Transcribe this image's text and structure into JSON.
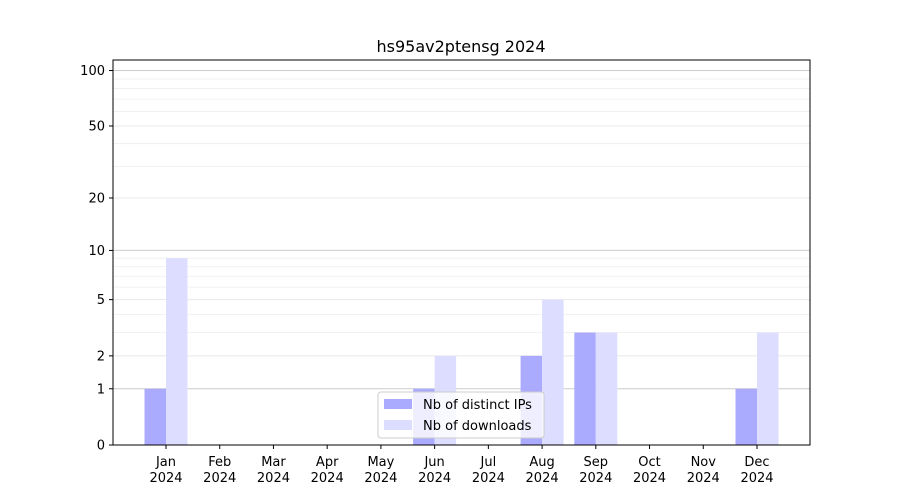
{
  "chart_data": {
    "type": "bar",
    "title": "hs95av2ptensg 2024",
    "xlabel": "",
    "ylabel": "",
    "yscale": "log(1+y)",
    "ylim": [
      0,
      114
    ],
    "yticks": [
      0,
      1,
      2,
      5,
      10,
      20,
      50,
      100
    ],
    "grid": true,
    "legend_position": "lower-center",
    "categories": [
      "Jan\n2024",
      "Feb\n2024",
      "Mar\n2024",
      "Apr\n2024",
      "May\n2024",
      "Jun\n2024",
      "Jul\n2024",
      "Aug\n2024",
      "Sep\n2024",
      "Oct\n2024",
      "Nov\n2024",
      "Dec\n2024"
    ],
    "series": [
      {
        "name": "Nb of distinct IPs",
        "color": "#aaaaff",
        "values": [
          1,
          0,
          0,
          0,
          0,
          1,
          0,
          2,
          3,
          0,
          0,
          1
        ]
      },
      {
        "name": "Nb of downloads",
        "color": "#ddddff",
        "values": [
          9,
          0,
          0,
          0,
          0,
          2,
          0,
          5,
          3,
          0,
          0,
          3
        ]
      }
    ]
  }
}
